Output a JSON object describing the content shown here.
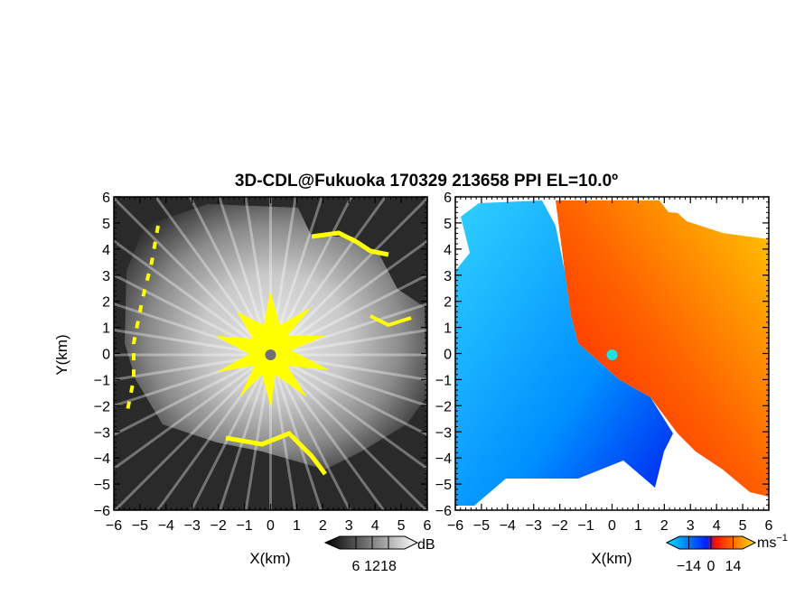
{
  "title": "3D-CDL@Fukuoka 170329 213658 PPI EL=10.0º",
  "chart_data": [
    {
      "type": "heatmap",
      "panel": "left",
      "xlabel": "X(km)",
      "ylabel": "Y(km)",
      "xlim": [
        -6,
        6
      ],
      "ylim": [
        -6,
        6
      ],
      "xticks": [
        "−6",
        "−5",
        "−4",
        "−3",
        "−2",
        "−1",
        "0",
        "1",
        "2",
        "3",
        "4",
        "5",
        "6"
      ],
      "yticks": [
        "6",
        "5",
        "4",
        "3",
        "2",
        "1",
        "0",
        "−1",
        "−2",
        "−3",
        "−4",
        "−5",
        "−6"
      ],
      "colormap": "grayscale with yellow",
      "colorbar": {
        "unit": "dB",
        "ticks": [
          "6",
          "12",
          "18"
        ],
        "range": [
          0,
          24
        ]
      },
      "colors": {
        "low": "#1a1a1a",
        "high": "#ffffff",
        "highlight": "#ffff00",
        "center": "#707070"
      }
    },
    {
      "type": "heatmap",
      "panel": "right",
      "xlabel": "X(km)",
      "ylabel": "",
      "xlim": [
        -6,
        6
      ],
      "ylim": [
        -6,
        6
      ],
      "xticks": [
        "−6",
        "−5",
        "−4",
        "−3",
        "−2",
        "−1",
        "0",
        "1",
        "2",
        "3",
        "4",
        "5",
        "6"
      ],
      "yticks": [
        "6",
        "5",
        "4",
        "3",
        "2",
        "1",
        "0",
        "−1",
        "−2",
        "−3",
        "−4",
        "−5",
        "−6"
      ],
      "colormap": "cyan-blue-red-yellow",
      "colorbar": {
        "unit": "ms",
        "unit_exponent": "−1",
        "ticks": [
          "−14",
          "0",
          "14"
        ],
        "range": [
          -20,
          20
        ]
      },
      "colors": {
        "neg_far": "#00c0ff",
        "neg_near": "#0030ff",
        "pos_near": "#ff2000",
        "pos_far": "#ffd000",
        "center": "#20e0e0"
      }
    }
  ]
}
